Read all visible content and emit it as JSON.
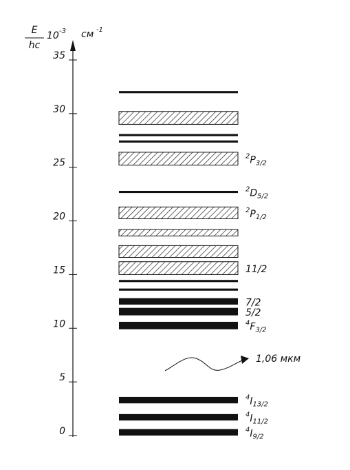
{
  "chart_data": {
    "type": "energy-levels",
    "axis_title": {
      "numerator": "E",
      "denominator": "hc",
      "factor": "10",
      "factor_exp": "-3",
      "unit": "см",
      "unit_exp": "-1"
    },
    "ylim": [
      0,
      35
    ],
    "yticks": [
      0,
      5,
      10,
      15,
      20,
      25,
      30,
      35
    ],
    "levels": [
      {
        "low": 0.0,
        "high": 0.6,
        "style": "solid",
        "label": {
          "prefix": "4",
          "term": "I",
          "j": "9/2"
        }
      },
      {
        "low": 1.4,
        "high": 2.0,
        "style": "solid",
        "label": {
          "prefix": "4",
          "term": "I",
          "j": "11/2"
        }
      },
      {
        "low": 3.0,
        "high": 3.6,
        "style": "solid",
        "label": {
          "prefix": "4",
          "term": "I",
          "j": "13/2"
        }
      },
      {
        "low": 9.9,
        "high": 10.6,
        "style": "solid",
        "label": {
          "prefix": "4",
          "term": "F",
          "j": "3/2"
        }
      },
      {
        "low": 11.2,
        "high": 11.9,
        "style": "solid",
        "label": {
          "term": "5/2"
        }
      },
      {
        "low": 12.2,
        "high": 12.8,
        "style": "solid",
        "label": {
          "term": "7/2"
        }
      },
      {
        "low": 13.5,
        "high": 13.7,
        "style": "solid"
      },
      {
        "low": 14.3,
        "high": 14.5,
        "style": "solid"
      },
      {
        "low": 15.0,
        "high": 16.2,
        "style": "hatched",
        "label": {
          "term": "11/2"
        }
      },
      {
        "low": 16.6,
        "high": 17.7,
        "style": "hatched"
      },
      {
        "low": 18.6,
        "high": 19.2,
        "style": "hatched"
      },
      {
        "low": 20.2,
        "high": 21.3,
        "style": "hatched",
        "label": {
          "prefix": "2",
          "term": "P",
          "j": "1/2"
        }
      },
      {
        "low": 22.6,
        "high": 22.8,
        "style": "solid",
        "label": {
          "prefix": "2",
          "term": "D",
          "j": "5/2"
        }
      },
      {
        "low": 25.2,
        "high": 26.4,
        "style": "hatched",
        "label": {
          "prefix": "2",
          "term": "P",
          "j": "3/2"
        }
      },
      {
        "low": 27.3,
        "high": 27.5,
        "style": "solid"
      },
      {
        "low": 27.9,
        "high": 28.1,
        "style": "solid"
      },
      {
        "low": 29.0,
        "high": 30.2,
        "style": "hatched"
      },
      {
        "low": 31.9,
        "high": 32.1,
        "style": "solid"
      }
    ],
    "annotation": "1,06 мкм"
  }
}
